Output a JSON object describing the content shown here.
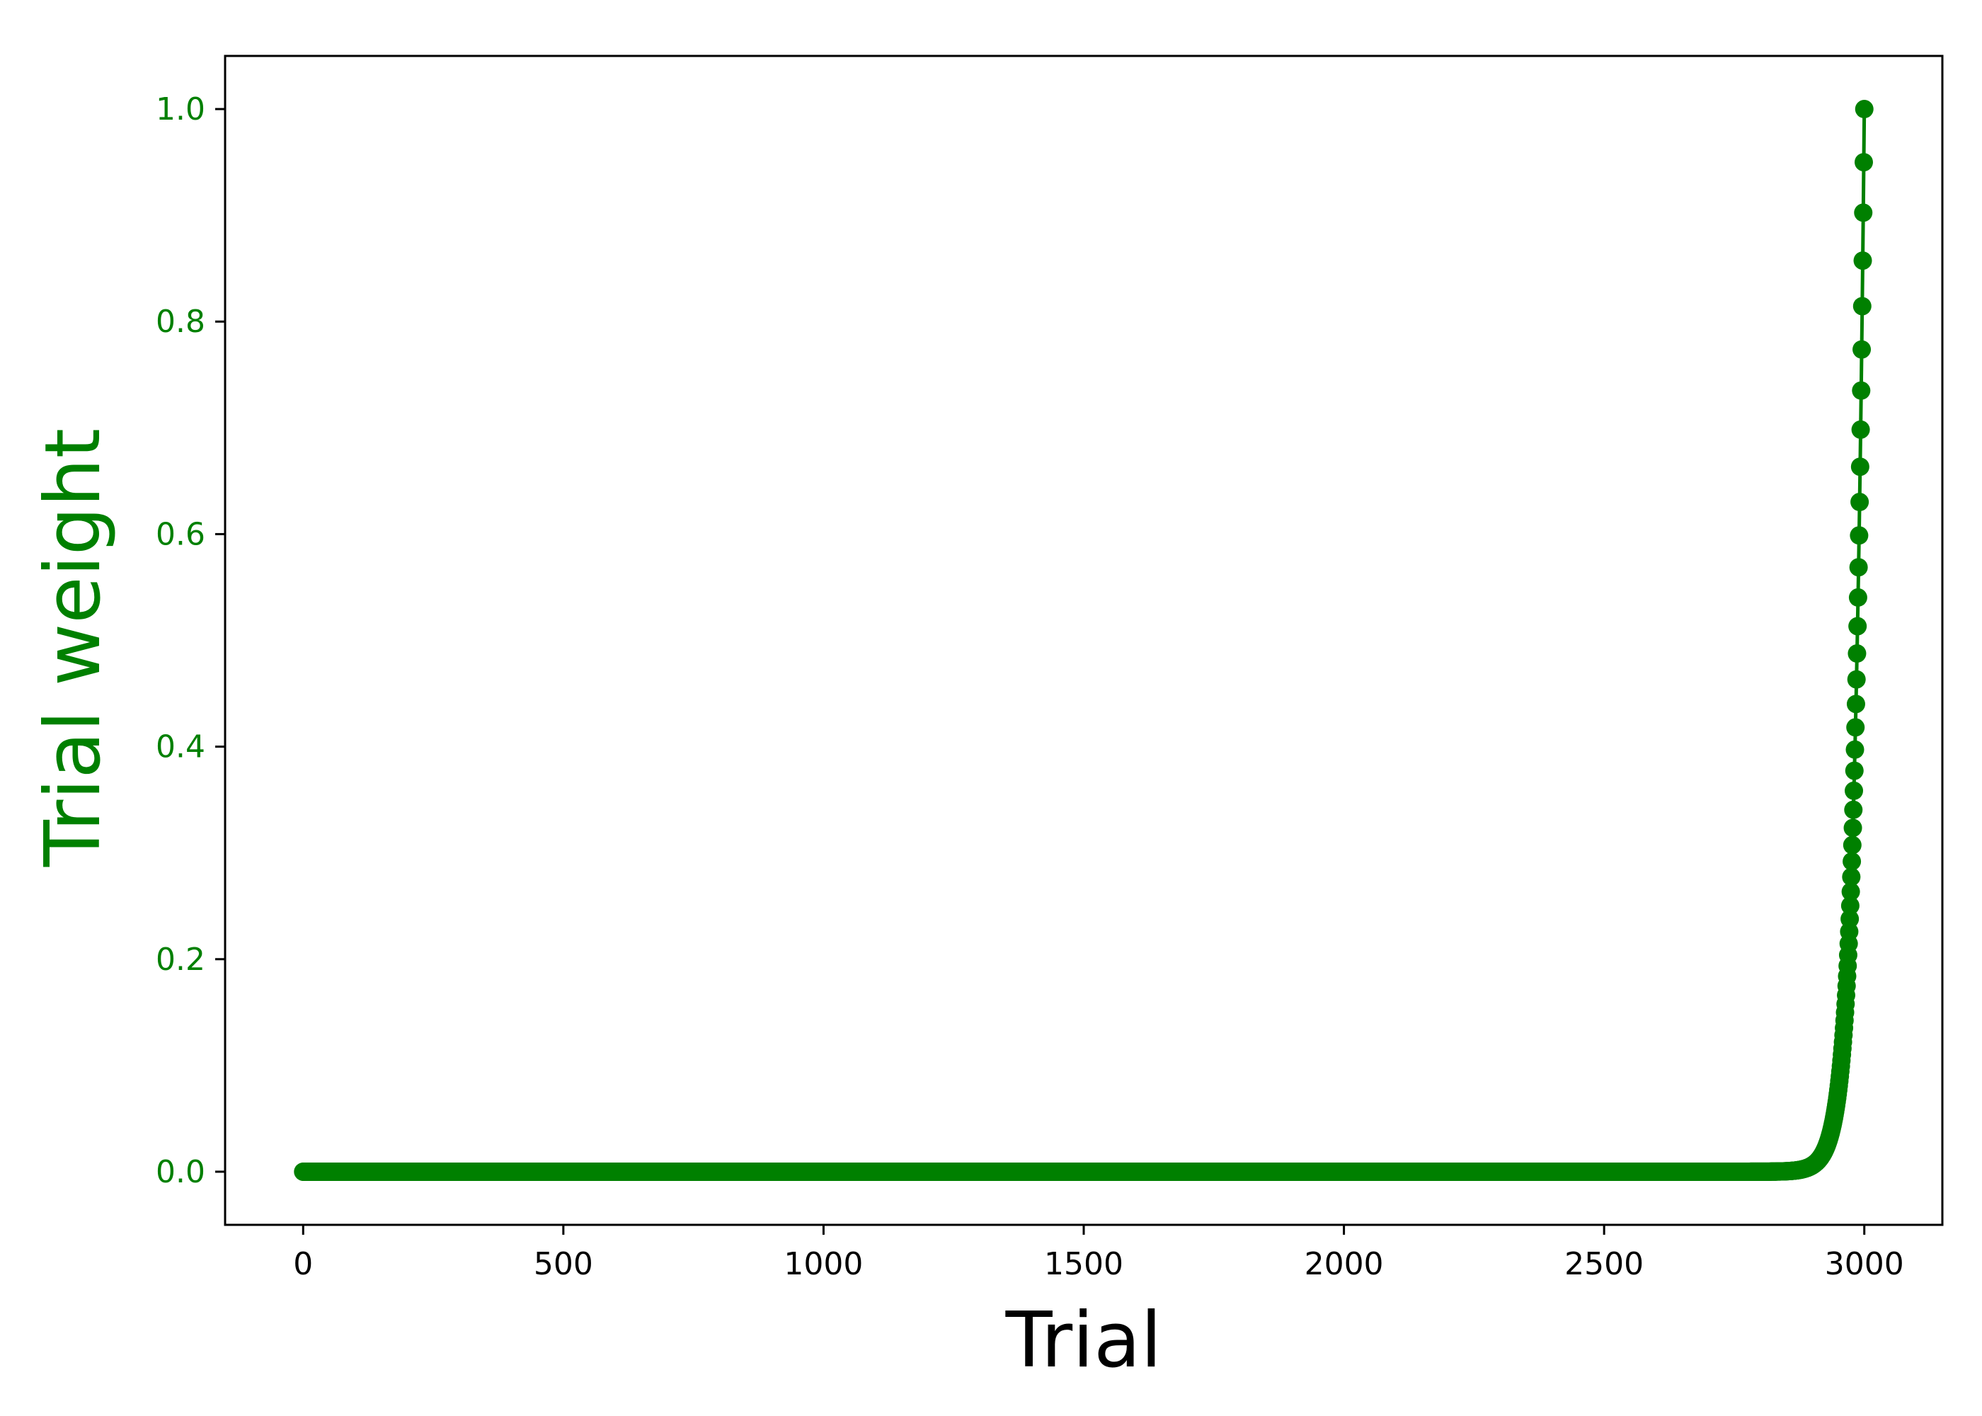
{
  "chart_data": {
    "type": "line",
    "xlabel": "Trial",
    "ylabel": "Trial weight",
    "xlim": [
      -150,
      3150
    ],
    "ylim": [
      -0.05,
      1.05
    ],
    "xticks": [
      0,
      500,
      1000,
      1500,
      2000,
      2500,
      3000
    ],
    "xtick_labels": [
      "0",
      "500",
      "1000",
      "1500",
      "2000",
      "2500",
      "3000"
    ],
    "yticks": [
      0.0,
      0.2,
      0.4,
      0.6,
      0.8,
      1.0
    ],
    "ytick_labels": [
      "0.0",
      "0.2",
      "0.4",
      "0.6",
      "0.8",
      "1.0"
    ],
    "grid": false,
    "legend": "none",
    "series": [
      {
        "color": "#008000",
        "marker": "circle",
        "x_start": 0,
        "x_end": 3000,
        "curve": "y = 0.95^(3000 - x)",
        "sample_points": [
          {
            "x": 0,
            "y": 0.0
          },
          {
            "x": 1000,
            "y": 0.0
          },
          {
            "x": 2000,
            "y": 0.0
          },
          {
            "x": 2850,
            "y": 0.0005
          },
          {
            "x": 2900,
            "y": 0.006
          },
          {
            "x": 2950,
            "y": 0.077
          },
          {
            "x": 2980,
            "y": 0.358
          },
          {
            "x": 2990,
            "y": 0.599
          },
          {
            "x": 2995,
            "y": 0.774
          },
          {
            "x": 3000,
            "y": 1.0
          }
        ]
      }
    ]
  },
  "colors": {
    "series": "#008000",
    "ylabel": "#008000",
    "ytick_labels": "#008000",
    "xlabel": "#000000",
    "axes": "#000000"
  }
}
